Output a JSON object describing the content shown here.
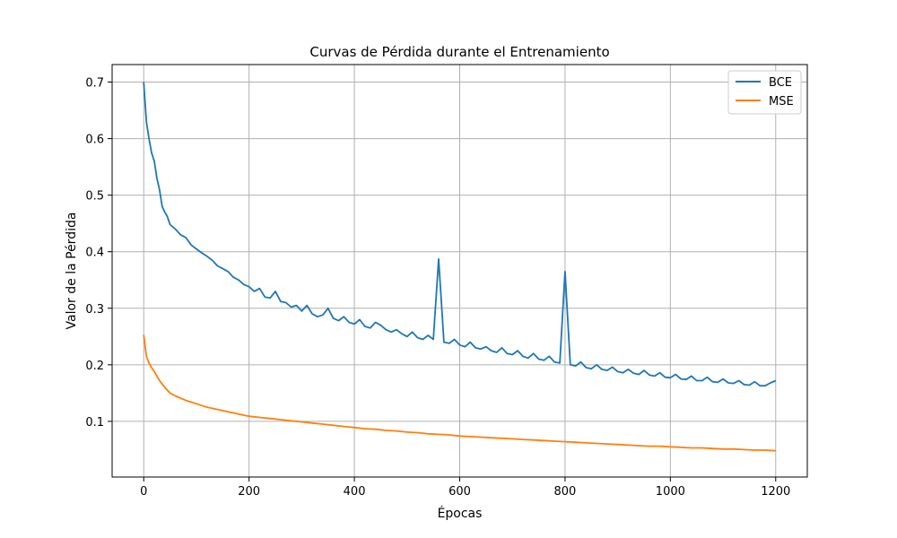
{
  "chart_data": {
    "type": "line",
    "title": "Curvas de Pérdida durante el Entrenamiento",
    "xlabel": "Épocas",
    "ylabel": "Valor de la Pérdida",
    "xlim": [
      -60,
      1260
    ],
    "ylim": [
      0.0015,
      0.731
    ],
    "xticks": [
      0,
      200,
      400,
      600,
      800,
      1000,
      1200
    ],
    "yticks": [
      0.1,
      0.2,
      0.3,
      0.4,
      0.5,
      0.6,
      0.7
    ],
    "grid": true,
    "legend_position": "top-right",
    "series": [
      {
        "name": "BCE",
        "color": "#1f77b4",
        "x": [
          0,
          5,
          10,
          15,
          20,
          25,
          30,
          35,
          40,
          45,
          50,
          60,
          70,
          80,
          90,
          100,
          110,
          120,
          130,
          140,
          150,
          160,
          170,
          180,
          190,
          200,
          210,
          220,
          230,
          240,
          250,
          260,
          270,
          280,
          290,
          300,
          310,
          320,
          330,
          340,
          350,
          360,
          370,
          380,
          390,
          400,
          410,
          420,
          430,
          440,
          450,
          460,
          470,
          480,
          490,
          500,
          510,
          520,
          530,
          540,
          550,
          560,
          570,
          580,
          590,
          600,
          610,
          620,
          630,
          640,
          650,
          660,
          670,
          680,
          690,
          700,
          710,
          720,
          730,
          740,
          750,
          760,
          770,
          780,
          790,
          800,
          810,
          820,
          830,
          840,
          850,
          860,
          870,
          880,
          890,
          900,
          910,
          920,
          930,
          940,
          950,
          960,
          970,
          980,
          990,
          1000,
          1010,
          1020,
          1030,
          1040,
          1050,
          1060,
          1070,
          1080,
          1090,
          1100,
          1110,
          1120,
          1130,
          1140,
          1150,
          1160,
          1170,
          1180,
          1190,
          1200
        ],
        "values": [
          0.7,
          0.63,
          0.6,
          0.575,
          0.56,
          0.53,
          0.51,
          0.48,
          0.47,
          0.462,
          0.448,
          0.44,
          0.43,
          0.425,
          0.412,
          0.405,
          0.398,
          0.392,
          0.385,
          0.375,
          0.37,
          0.365,
          0.355,
          0.35,
          0.342,
          0.338,
          0.33,
          0.335,
          0.32,
          0.318,
          0.33,
          0.312,
          0.31,
          0.302,
          0.305,
          0.295,
          0.305,
          0.29,
          0.285,
          0.288,
          0.3,
          0.282,
          0.278,
          0.285,
          0.275,
          0.272,
          0.28,
          0.268,
          0.265,
          0.275,
          0.27,
          0.262,
          0.258,
          0.262,
          0.255,
          0.25,
          0.258,
          0.248,
          0.245,
          0.252,
          0.245,
          0.387,
          0.24,
          0.238,
          0.245,
          0.235,
          0.232,
          0.24,
          0.23,
          0.228,
          0.232,
          0.225,
          0.222,
          0.23,
          0.22,
          0.218,
          0.225,
          0.215,
          0.212,
          0.22,
          0.21,
          0.208,
          0.215,
          0.205,
          0.203,
          0.365,
          0.2,
          0.198,
          0.205,
          0.195,
          0.193,
          0.2,
          0.192,
          0.19,
          0.196,
          0.188,
          0.186,
          0.192,
          0.185,
          0.183,
          0.19,
          0.182,
          0.18,
          0.186,
          0.178,
          0.177,
          0.183,
          0.175,
          0.174,
          0.18,
          0.172,
          0.172,
          0.178,
          0.17,
          0.169,
          0.175,
          0.168,
          0.167,
          0.172,
          0.165,
          0.164,
          0.17,
          0.163,
          0.163,
          0.168,
          0.172
        ]
      },
      {
        "name": "MSE",
        "color": "#ff7f0e",
        "x": [
          0,
          5,
          10,
          15,
          20,
          25,
          30,
          35,
          40,
          45,
          50,
          60,
          70,
          80,
          90,
          100,
          110,
          120,
          130,
          140,
          150,
          160,
          170,
          180,
          190,
          200,
          220,
          240,
          260,
          280,
          300,
          320,
          340,
          360,
          380,
          400,
          420,
          440,
          460,
          480,
          500,
          520,
          540,
          560,
          580,
          600,
          620,
          640,
          660,
          680,
          700,
          720,
          740,
          760,
          780,
          800,
          820,
          840,
          860,
          880,
          900,
          920,
          940,
          960,
          980,
          1000,
          1020,
          1040,
          1060,
          1080,
          1100,
          1120,
          1140,
          1160,
          1180,
          1200
        ],
        "values": [
          0.253,
          0.215,
          0.203,
          0.195,
          0.188,
          0.18,
          0.172,
          0.166,
          0.16,
          0.155,
          0.15,
          0.145,
          0.141,
          0.137,
          0.134,
          0.131,
          0.128,
          0.125,
          0.123,
          0.121,
          0.119,
          0.117,
          0.115,
          0.113,
          0.111,
          0.109,
          0.107,
          0.105,
          0.103,
          0.101,
          0.099,
          0.097,
          0.095,
          0.093,
          0.091,
          0.089,
          0.087,
          0.086,
          0.084,
          0.083,
          0.081,
          0.08,
          0.078,
          0.077,
          0.076,
          0.074,
          0.073,
          0.072,
          0.071,
          0.07,
          0.069,
          0.068,
          0.067,
          0.066,
          0.065,
          0.064,
          0.063,
          0.062,
          0.061,
          0.06,
          0.059,
          0.058,
          0.057,
          0.056,
          0.056,
          0.055,
          0.054,
          0.053,
          0.053,
          0.052,
          0.051,
          0.051,
          0.05,
          0.049,
          0.049,
          0.048
        ]
      }
    ]
  }
}
